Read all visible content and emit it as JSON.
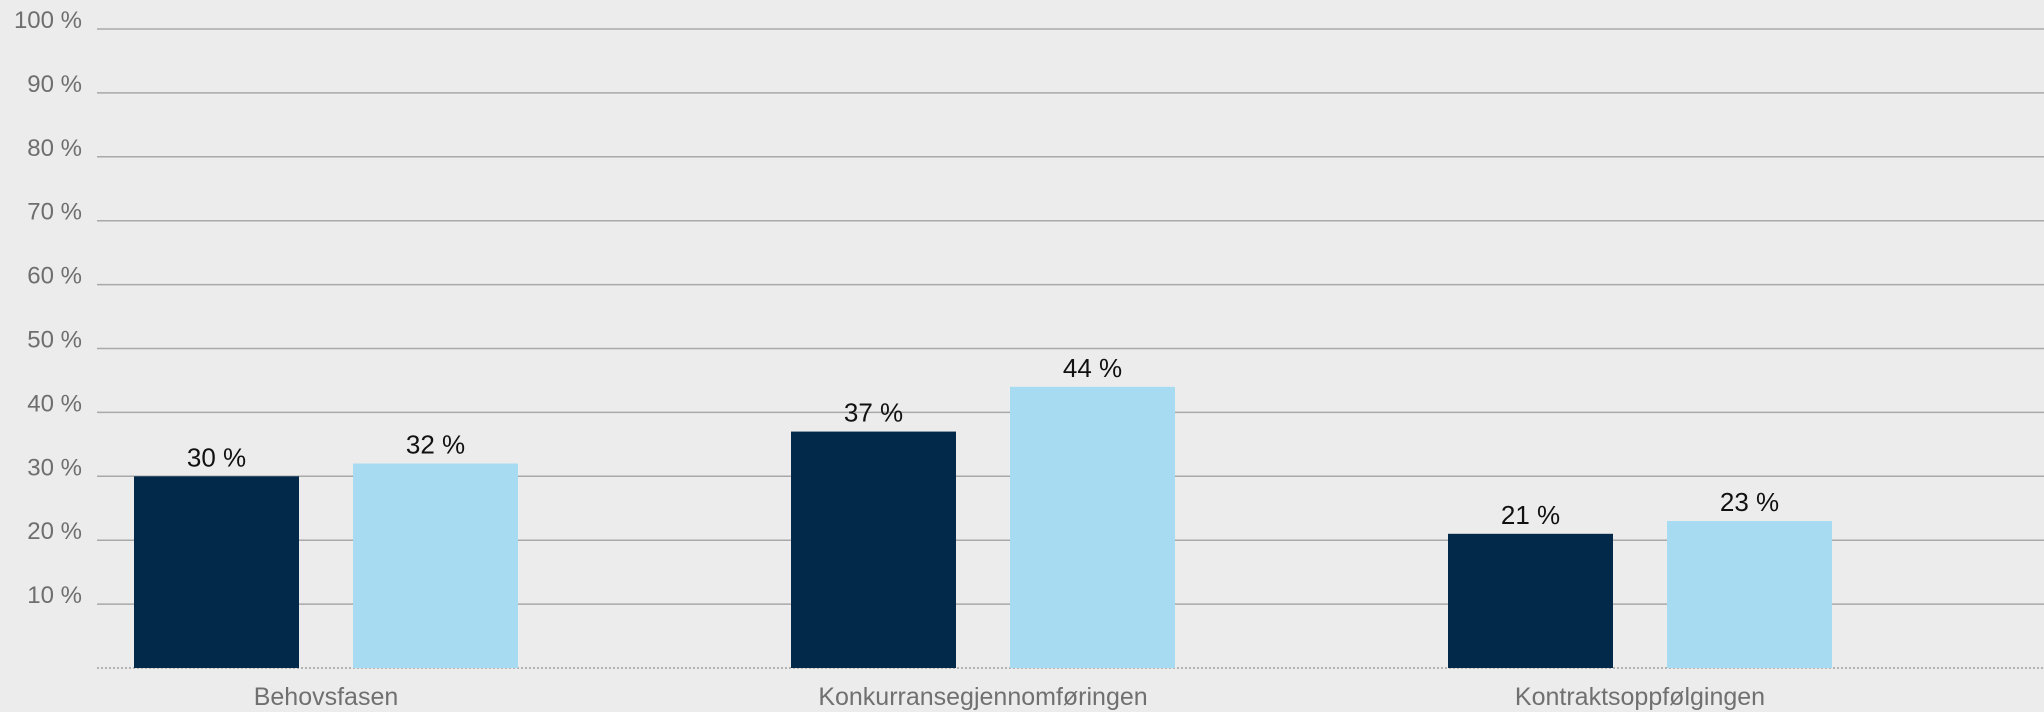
{
  "chart_data": {
    "type": "bar",
    "title": "",
    "xlabel": "",
    "ylabel": "",
    "categories": [
      "Behovsfasen",
      "Konkurransegjennomføringen",
      "Kontraktsoppfølgingen"
    ],
    "series": [
      {
        "values": [
          30,
          37,
          21
        ],
        "labels": [
          "30 %",
          "37 %",
          "21 %"
        ],
        "color": "#02294a"
      },
      {
        "values": [
          32,
          44,
          23
        ],
        "labels": [
          "32 %",
          "44 %",
          "23 %"
        ],
        "color": "#a6dbf2"
      }
    ],
    "ylim": [
      0,
      100
    ],
    "yticks": [
      10,
      20,
      30,
      40,
      50,
      60,
      70,
      80,
      90,
      100
    ],
    "ytick_labels": [
      "10 %",
      "20 %",
      "30 %",
      "40 %",
      "50 %",
      "60 %",
      "70 %",
      "80 %",
      "90 %",
      "100 %"
    ],
    "grid": true,
    "legend": "none"
  }
}
